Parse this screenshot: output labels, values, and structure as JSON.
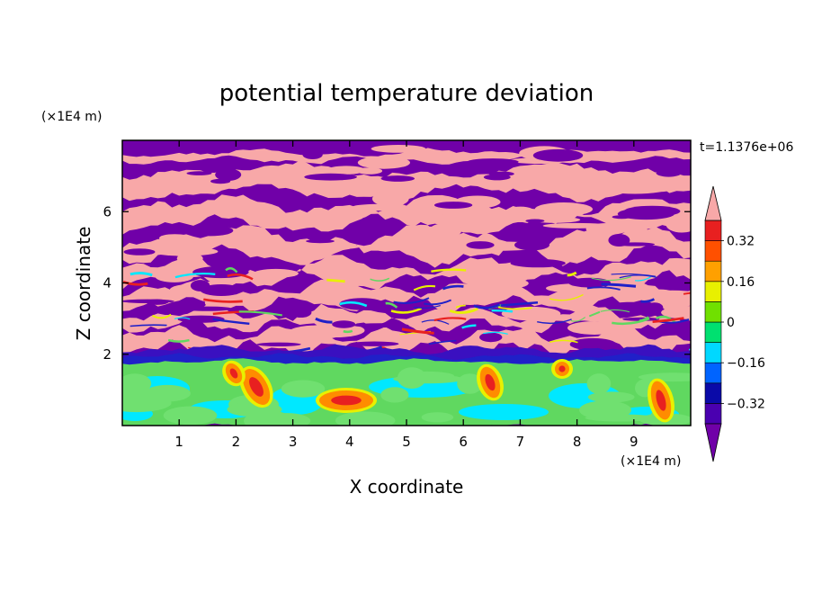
{
  "chart_data": {
    "type": "heatmap",
    "title": "potential temperature deviation",
    "time_label": "t=1.1376e+06",
    "xlabel": "X coordinate",
    "ylabel": "Z coordinate",
    "x_unit": "(×1E4 m)",
    "y_unit": "(×1E4 m)",
    "xlim": [
      0,
      10
    ],
    "ylim": [
      0,
      8
    ],
    "x_ticks": [
      "1",
      "2",
      "3",
      "4",
      "5",
      "6",
      "7",
      "8",
      "9"
    ],
    "y_ticks": [
      "2",
      "4",
      "6"
    ],
    "colorbar": {
      "levels": [
        -0.4,
        -0.32,
        -0.24,
        -0.16,
        -0.08,
        0,
        0.08,
        0.16,
        0.24,
        0.32,
        0.4
      ],
      "labels": [
        "0.32",
        "0.16",
        "0",
        "−0.16",
        "−0.32"
      ],
      "label_values": [
        0.32,
        0.16,
        0,
        -0.16,
        -0.32
      ],
      "colors": [
        "#7000a8",
        "#4a00b0",
        "#0a0aa8",
        "#0064ff",
        "#00d8ff",
        "#00e070",
        "#70e000",
        "#e8f000",
        "#ffa000",
        "#ff5000",
        "#e82020",
        "#f8a8a8"
      ],
      "over_color": "#f8a8a8",
      "under_color": "#7000a8"
    },
    "palette": {
      "background_purple": "#7000a8",
      "pink": "#f8a8a8",
      "blue": "#2020c8",
      "cyan": "#00e8ff",
      "green": "#60d860",
      "yellow": "#e8f000",
      "orange": "#ff8c00",
      "red": "#e82020"
    }
  }
}
